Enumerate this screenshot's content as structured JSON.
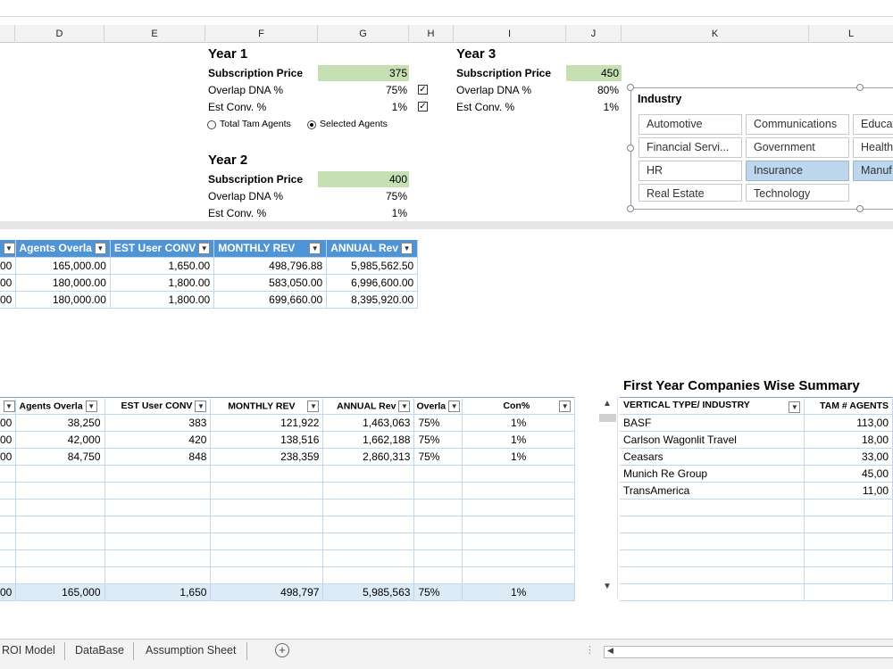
{
  "columns": [
    "D",
    "E",
    "F",
    "G",
    "H",
    "I",
    "J",
    "K",
    "L"
  ],
  "year1": {
    "title": "Year 1",
    "sub_label": "Subscription Price",
    "sub_value": "375",
    "overlap_label": "Overlap DNA %",
    "overlap_value": "75%",
    "conv_label": "Est Conv. %",
    "conv_value": "1%"
  },
  "year2": {
    "title": "Year 2",
    "sub_label": "Subscription Price",
    "sub_value": "400",
    "overlap_label": "Overlap DNA %",
    "overlap_value": "75%",
    "conv_label": "Est Conv. %",
    "conv_value": "1%"
  },
  "year3": {
    "title": "Year 3",
    "sub_label": "Subscription Price",
    "sub_value": "450",
    "overlap_label": "Overlap DNA %",
    "overlap_value": "80%",
    "conv_label": "Est Conv. %",
    "conv_value": "1%"
  },
  "radios": {
    "total_tam": "Total Tam Agents",
    "selected": "Selected Agents"
  },
  "slicer": {
    "title": "Industry",
    "items": [
      "Automotive",
      "Communications",
      "Educat",
      "Financial Servi...",
      "Government",
      "Health",
      "HR",
      "Insurance",
      "Manuf",
      "Real Estate",
      "Technology"
    ]
  },
  "table1": {
    "headers": [
      "Agents Overla",
      "EST User CONV",
      "MONTHLY REV",
      "ANNUAL Rev"
    ],
    "lead": [
      "00",
      "00",
      "00"
    ],
    "rows": [
      [
        "165,000.00",
        "1,650.00",
        "498,796.88",
        "5,985,562.50"
      ],
      [
        "180,000.00",
        "1,800.00",
        "583,050.00",
        "6,996,600.00"
      ],
      [
        "180,000.00",
        "1,800.00",
        "699,660.00",
        "8,395,920.00"
      ]
    ]
  },
  "table2": {
    "headers": [
      "Agents Overla",
      "EST User CONV",
      "MONTHLY REV",
      "ANNUAL Rev",
      "Overla",
      "Con%"
    ],
    "lead": [
      "00",
      "00",
      "00"
    ],
    "rows": [
      [
        "38,250",
        "383",
        "121,922",
        "1,463,063",
        "75%",
        "1%"
      ],
      [
        "42,000",
        "420",
        "138,516",
        "1,662,188",
        "75%",
        "1%"
      ],
      [
        "84,750",
        "848",
        "238,359",
        "2,860,313",
        "75%",
        "1%"
      ]
    ],
    "total": {
      "lead": "00",
      "values": [
        "165,000",
        "1,650",
        "498,797",
        "5,985,563",
        "75%",
        "1%"
      ]
    }
  },
  "summary": {
    "title": "First Year Companies Wise Summary",
    "headers": [
      "VERTICAL TYPE/ INDUSTRY",
      "TAM # AGENTS"
    ],
    "rows": [
      [
        "BASF",
        "113,00"
      ],
      [
        "Carlson Wagonlit Travel",
        "18,00"
      ],
      [
        "Ceasars",
        "33,00"
      ],
      [
        "Munich Re Group",
        "45,00"
      ],
      [
        "TransAmerica",
        "11,00"
      ]
    ]
  },
  "tabs": [
    "ROI Model",
    "DataBase",
    "Assumption Sheet"
  ],
  "add_sheet": "+"
}
